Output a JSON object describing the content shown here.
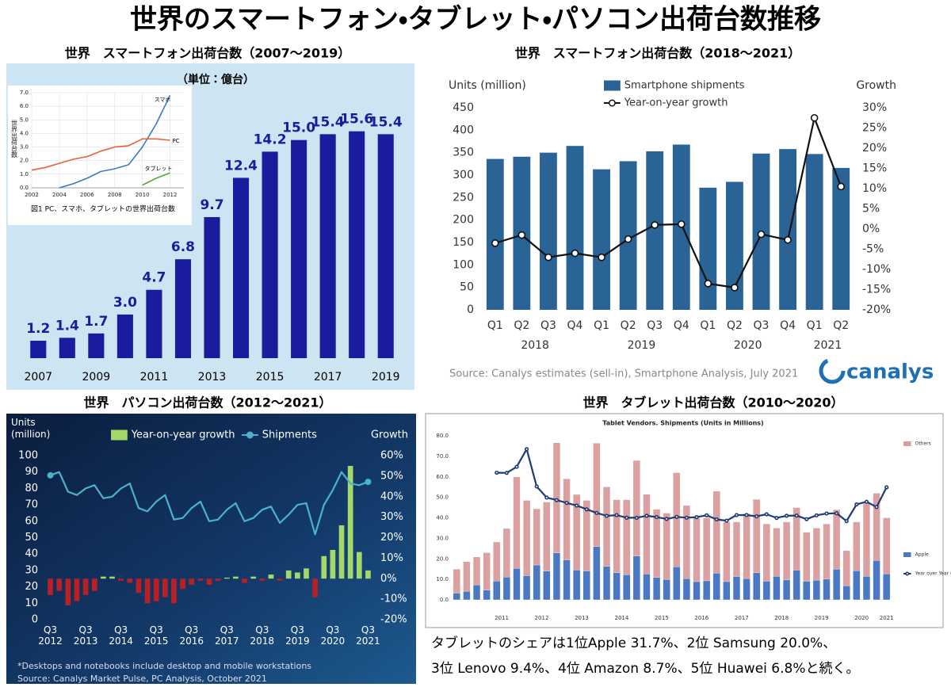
{
  "title": "世界のスマートフォン・タブレット・パソコン出荷台数推移",
  "note": [
    "タブレットのシェアは1位Apple 31.7%、2位 Samsung 20.0%、",
    "3位 Lenovo 9.4%、4位 Amazon 8.7%、5位 Huawei 6.8%と続く。"
  ],
  "chart_data": [
    {
      "type": "bar",
      "title": "世界　スマートフォン出荷台数（2007〜2019）",
      "subtitle": "（単位：億台）",
      "categories": [
        "2007",
        null,
        "2009",
        null,
        "2011",
        null,
        "2013",
        null,
        "2015",
        null,
        "2017",
        null,
        "2019"
      ],
      "values": [
        1.2,
        1.4,
        1.7,
        3.0,
        4.7,
        6.8,
        9.7,
        12.4,
        14.2,
        15.0,
        15.4,
        15.6,
        15.4
      ],
      "value_labels": [
        "1.2",
        "1.4",
        "1.7",
        "3.0",
        "4.7",
        "6.8",
        "9.7",
        "12.4",
        "14.2",
        "15.0",
        "15.4",
        "15.6",
        "15.4"
      ],
      "color": "#1b1b9e",
      "ylim": [
        0,
        17
      ]
    },
    {
      "type": "line",
      "caption": "図1 PC、スマホ、タブレットの世界出荷台数",
      "y_label": "世界出荷台数",
      "x": [
        2002,
        2003,
        2004,
        2005,
        2006,
        2007,
        2008,
        2009,
        2010,
        2011,
        2012
      ],
      "xlim": [
        2002,
        2013
      ],
      "xticks": [
        2002,
        2004,
        2006,
        2008,
        2010,
        2012
      ],
      "ylim": [
        0,
        7
      ],
      "yticks": [
        {
          "value": 0,
          "label": "0.0"
        },
        {
          "value": 1,
          "label": "1.0"
        },
        {
          "value": 2,
          "label": "2.0"
        },
        {
          "value": 3,
          "label": "3.0"
        },
        {
          "value": 4,
          "label": "4.0"
        },
        {
          "value": 5,
          "label": "5.0"
        },
        {
          "value": 6,
          "label": "6.0"
        },
        {
          "value": 7,
          "label": "7.0"
        }
      ],
      "grid": true,
      "series": [
        {
          "name": "スマホ",
          "color": "#3a7bbf",
          "kind": "line",
          "values": [
            null,
            null,
            0.0,
            0.3,
            0.7,
            1.2,
            1.4,
            1.7,
            3.0,
            4.7,
            6.8
          ]
        },
        {
          "name": "PC",
          "color": "#e8603c",
          "kind": "line",
          "values": [
            1.3,
            1.5,
            1.8,
            2.1,
            2.3,
            2.7,
            3.0,
            3.1,
            3.6,
            3.6,
            3.5
          ]
        },
        {
          "name": "タブレット",
          "color": "#5aa832",
          "kind": "line",
          "values": [
            null,
            null,
            null,
            null,
            null,
            null,
            null,
            null,
            0.2,
            0.7,
            1.1
          ]
        }
      ]
    },
    {
      "type": "bar_line",
      "title": "世界　スマートフォン出荷台数（2018〜2021）",
      "y_label": "Units (million)",
      "y2_label": "Growth",
      "categories": [
        "Q1",
        "Q2",
        "Q3",
        "Q4",
        "Q1",
        "Q2",
        "Q3",
        "Q4",
        "Q1",
        "Q2",
        "Q3",
        "Q4",
        "Q1",
        "Q2"
      ],
      "category_groups": [
        "2018",
        null,
        null,
        null,
        "2019",
        null,
        null,
        null,
        "2020",
        null,
        null,
        null,
        "2021",
        null
      ],
      "ylim": [
        0,
        450
      ],
      "yticks": [
        0,
        50,
        100,
        150,
        200,
        250,
        300,
        350,
        400,
        450
      ],
      "y2lim": [
        -20,
        30
      ],
      "y2ticks": [
        {
          "value": -20,
          "label": "-20%"
        },
        {
          "value": -15,
          "label": "-15%"
        },
        {
          "value": -10,
          "label": "-10%"
        },
        {
          "value": -5,
          "label": "-5%"
        },
        {
          "value": 0,
          "label": "0%"
        },
        {
          "value": 5,
          "label": "5%"
        },
        {
          "value": 10,
          "label": "10%"
        },
        {
          "value": 15,
          "label": "15%"
        },
        {
          "value": 20,
          "label": "20%"
        },
        {
          "value": 25,
          "label": "25%"
        },
        {
          "value": 30,
          "label": "30%"
        }
      ],
      "series": [
        {
          "name": "Smartphone shipments",
          "color": "#2a6395",
          "kind": "bar",
          "values": [
            336,
            341,
            350,
            365,
            313,
            331,
            353,
            368,
            272,
            285,
            348,
            358,
            347,
            316
          ]
        },
        {
          "name": "Year-on-year growth",
          "color": "#111111",
          "kind": "line",
          "axis": "y2",
          "values": [
            -3.5,
            -1.5,
            -7,
            -6,
            -7,
            -2.5,
            1,
            1.2,
            -13.5,
            -14.5,
            -1.3,
            -2.7,
            27.5,
            10.5
          ]
        }
      ],
      "source": "Source: Canalys estimates (sell-in), Smartphone Analysis, July 2021",
      "logo": "canalys"
    },
    {
      "type": "bar_line",
      "title": "世界　パソコン出荷台数（2012〜2021）",
      "y_label": "Units (million)",
      "y2_label": "Growth",
      "categories": [
        "Q3 2012",
        null,
        null,
        null,
        "Q3 2013",
        null,
        null,
        null,
        "Q3 2014",
        null,
        null,
        null,
        "Q3 2015",
        null,
        null,
        null,
        "Q3 2016",
        null,
        null,
        null,
        "Q3 2017",
        null,
        null,
        null,
        "Q3 2018",
        null,
        null,
        null,
        "Q3 2019",
        null,
        null,
        null,
        "Q3 2020",
        null,
        null,
        null,
        "Q3 2021"
      ],
      "ylim": [
        0,
        100
      ],
      "yticks": [
        0,
        10,
        20,
        30,
        40,
        50,
        60,
        70,
        80,
        90,
        100
      ],
      "y2lim": [
        -20,
        60
      ],
      "y2ticks": [
        {
          "value": -20,
          "label": "-20%"
        },
        {
          "value": -10,
          "label": "-10%"
        },
        {
          "value": 0,
          "label": "0%"
        },
        {
          "value": 10,
          "label": "10%"
        },
        {
          "value": 20,
          "label": "20%"
        },
        {
          "value": 30,
          "label": "30%"
        },
        {
          "value": 40,
          "label": "40%"
        },
        {
          "value": 50,
          "label": "50%"
        },
        {
          "value": 60,
          "label": "60%"
        }
      ],
      "series": [
        {
          "name": "Year-on-year growth",
          "color": "#a5d86a",
          "negative_color": "#b82025",
          "kind": "bar",
          "axis": "y2",
          "values": [
            -8,
            -6,
            -13,
            -11,
            -8,
            -6,
            1,
            1,
            -1,
            -2,
            -7,
            -12,
            -11,
            -9,
            -12,
            -5,
            -3,
            -1,
            -3,
            -1,
            0.5,
            1,
            -2,
            1,
            -1,
            2,
            -1,
            4,
            3,
            5,
            -9,
            11,
            14,
            26,
            55,
            13,
            4
          ]
        },
        {
          "name": "Shipments",
          "color": "#49b3cb",
          "kind": "line",
          "values": [
            88,
            90,
            78,
            76,
            80,
            82,
            74,
            75,
            80,
            83,
            68,
            66,
            72,
            76,
            61,
            62,
            68,
            72,
            60,
            61,
            67,
            71,
            60,
            62,
            67,
            69,
            59,
            64,
            70,
            71,
            52,
            70,
            79,
            90,
            83,
            82,
            84
          ]
        }
      ],
      "footnote": "*Desktops and notebooks include desktop and mobile workstations",
      "source": "Source: Canalys Market Pulse, PC Analysis, October 2021"
    },
    {
      "type": "stacked_bar_line",
      "title": "世界　タブレット出荷台数（2010〜2020）",
      "inner_title": "Tablet Vendors. Shipments (Units in Millions)",
      "categories": [
        null,
        null,
        null,
        "2011",
        null,
        null,
        null,
        "2012",
        null,
        null,
        null,
        "2013",
        null,
        null,
        null,
        "2014",
        null,
        null,
        null,
        "2015",
        null,
        null,
        null,
        "2016",
        null,
        null,
        null,
        "2017",
        null,
        null,
        null,
        "2018",
        null,
        null,
        null,
        "2019",
        null,
        null,
        null,
        "2020",
        null,
        null,
        null,
        "2021"
      ],
      "ylim": [
        0,
        80
      ],
      "yticks": [
        {
          "value": 0,
          "label": "0.0"
        },
        {
          "value": 10,
          "label": "10.0"
        },
        {
          "value": 20,
          "label": "20.0"
        },
        {
          "value": 30,
          "label": "30.0"
        },
        {
          "value": 40,
          "label": "40.0"
        },
        {
          "value": 50,
          "label": "50.0"
        },
        {
          "value": 60,
          "label": "60.0"
        },
        {
          "value": 70,
          "label": "70.0"
        },
        {
          "value": 80,
          "label": "80.0"
        }
      ],
      "y2lim": [
        -190,
        168
      ],
      "series": [
        {
          "name": "Apple",
          "color": "#4a78c2",
          "kind": "bar",
          "values": [
            3.3,
            4.2,
            7.3,
            4.7,
            9.2,
            11.1,
            15.4,
            11.8,
            17.0,
            14.0,
            22.9,
            19.5,
            14.6,
            14.1,
            26.0,
            16.4,
            13.3,
            12.3,
            21.4,
            12.6,
            10.9,
            9.9,
            16.1,
            10.3,
            8.9,
            9.3,
            13.1,
            8.9,
            11.4,
            10.3,
            13.2,
            9.1,
            11.5,
            9.7,
            14.5,
            9.1,
            9.6,
            10.1,
            15.0,
            6.9,
            14.2,
            11.5,
            19.2,
            12.7
          ]
        },
        {
          "name": "Others",
          "color": "#dba0a0",
          "kind": "bar",
          "values": [
            11.7,
            14.4,
            13.6,
            18.3,
            19.0,
            23.7,
            44.6,
            36.7,
            27.4,
            33.7,
            53.7,
            39.5,
            36.8,
            34.4,
            50.4,
            38.7,
            35.5,
            36.5,
            46.6,
            38.9,
            33.3,
            32.4,
            45.9,
            35.7,
            31.1,
            30.7,
            39.9,
            29.1,
            26.6,
            31.7,
            35.8,
            27.9,
            23.5,
            28.3,
            30.5,
            23.9,
            25.4,
            26.9,
            29.0,
            17.1,
            23.8,
            35.5,
            32.8,
            27.3
          ]
        },
        {
          "name": "Year over Year Growth Rate",
          "color": "#1f3b73",
          "kind": "line",
          "axis": "y2",
          "values": [
            null,
            null,
            null,
            null,
            87.5,
            87.1,
            100.4,
            138.9,
            57.4,
            33.2,
            27.7,
            21.6,
            15.8,
            7.6,
            -0.3,
            -6.6,
            -5.1,
            -10.8,
            -10.9,
            -6.5,
            -9.4,
            -13.4,
            -8.9,
            -10.7,
            -9.5,
            -5.4,
            -14.5,
            -17.2,
            -5.0,
            -4.9,
            -7.7,
            -3.2,
            -11.2,
            -6.5,
            -6.0,
            -13.9,
            -5.5,
            -1.6,
            -1.0,
            -18.1,
            18.4,
            24.1,
            12.6,
            55.6
          ]
        }
      ]
    }
  ]
}
